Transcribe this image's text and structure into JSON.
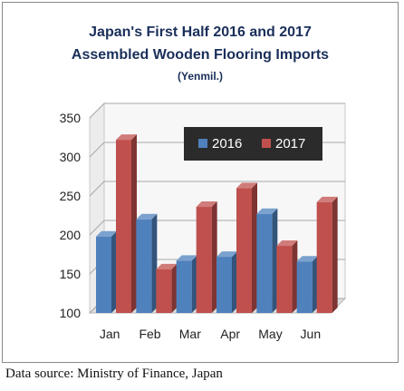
{
  "chart_data": {
    "type": "bar",
    "title_lines": [
      "Japan's First Half 2016 and 2017",
      "Assembled Wooden Flooring Imports"
    ],
    "subtitle": "(Yenmil.)",
    "xlabel": "",
    "ylabel": "",
    "categories": [
      "Jan",
      "Feb",
      "Mar",
      "Apr",
      "May",
      "Jun"
    ],
    "series": [
      {
        "name": "2016",
        "color": "#4f81bd",
        "values": [
          198,
          220,
          167,
          172,
          227,
          166
        ]
      },
      {
        "name": "2017",
        "color": "#c0504d",
        "values": [
          322,
          156,
          236,
          260,
          186,
          242
        ]
      }
    ],
    "ylim": [
      100,
      350
    ],
    "yticks": [
      "100",
      "150",
      "200",
      "250",
      "300",
      "350"
    ],
    "grid": true,
    "legend_position": "top-right",
    "style": "3d-clustered-column"
  },
  "source_note": "Data source: Ministry of Finance, Japan"
}
